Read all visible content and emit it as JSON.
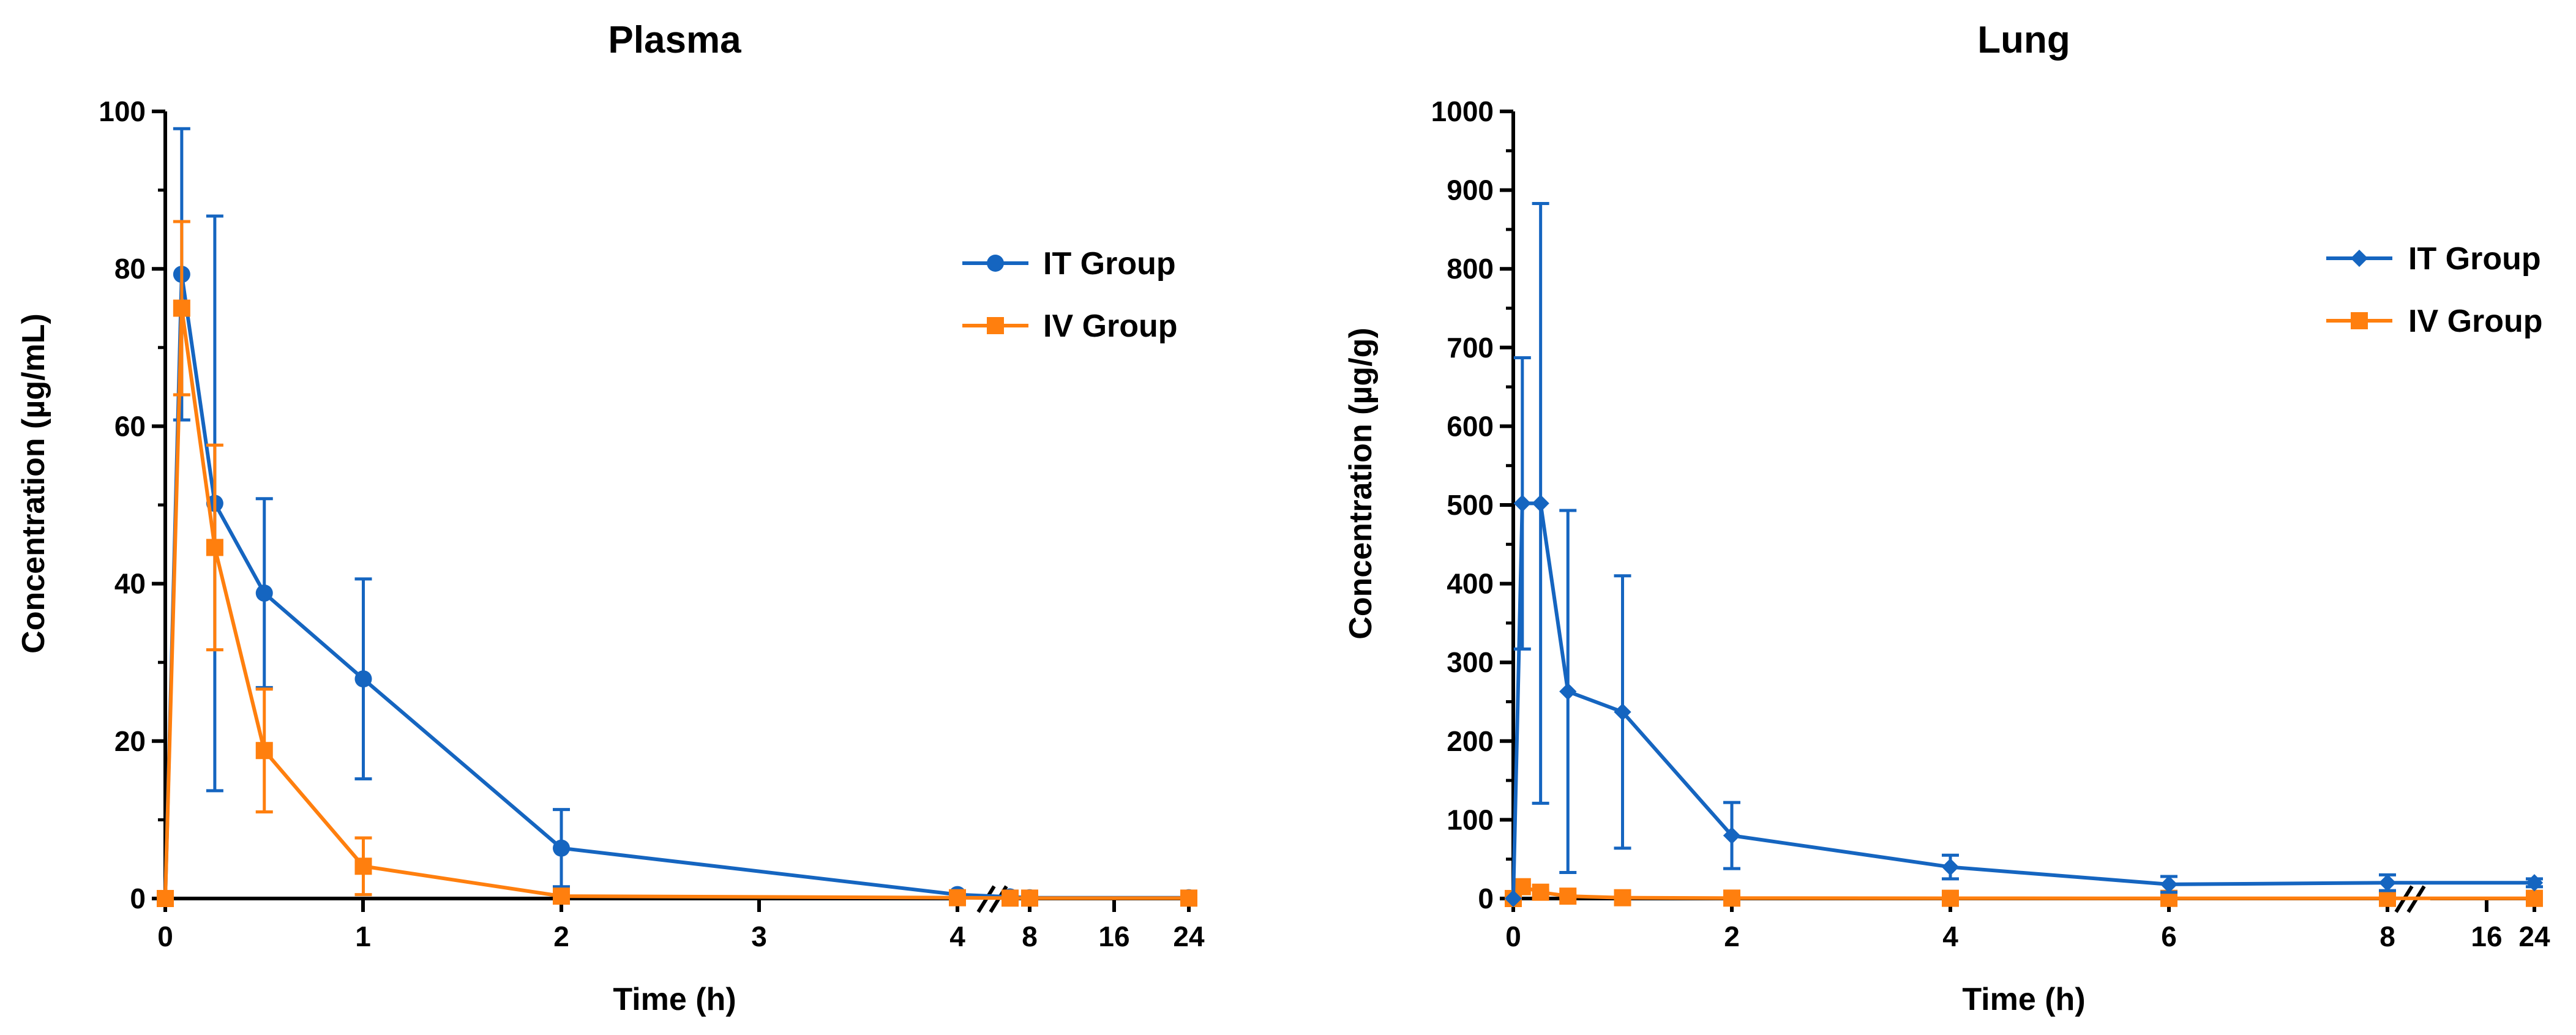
{
  "colors": {
    "it": "#1565C0",
    "iv": "#FF7F0E",
    "axis": "#000000"
  },
  "chart_data": [
    {
      "type": "line",
      "title": "Plasma",
      "xlabel": "Time (h)",
      "ylabel": "Concentration (µg/mL)",
      "ylim": [
        0,
        100
      ],
      "yticks": [
        0,
        20,
        40,
        60,
        80,
        100
      ],
      "xticks": [
        "0",
        "1",
        "2",
        "3",
        "4",
        "8",
        "16",
        "24"
      ],
      "x_axis": "broken: linear 0–4 h, then 8, 16, 24 h",
      "legend": "top-right",
      "series": [
        {
          "name": "IT Group",
          "marker": "circle",
          "x": [
            0,
            0.083,
            0.25,
            0.5,
            1,
            2,
            4,
            6,
            8,
            24
          ],
          "y": [
            0,
            79.3,
            50.2,
            38.8,
            27.9,
            6.4,
            0.5,
            0.2,
            0.1,
            0.1
          ],
          "err": [
            0,
            18.5,
            36.5,
            12.0,
            12.7,
            4.9,
            0.3,
            0.1,
            0.05,
            0.05
          ]
        },
        {
          "name": "IV Group",
          "marker": "square",
          "x": [
            0,
            0.083,
            0.25,
            0.5,
            1,
            2,
            4,
            6,
            8,
            24
          ],
          "y": [
            0,
            75.0,
            44.6,
            18.8,
            4.1,
            0.3,
            0.1,
            0.05,
            0.05,
            0.05
          ],
          "err": [
            0,
            11.0,
            13.0,
            7.8,
            3.6,
            0.3,
            0.05,
            0.02,
            0.02,
            0.02
          ]
        }
      ]
    },
    {
      "type": "line",
      "title": "Lung",
      "xlabel": "Time (h)",
      "ylabel": "Concentration (µg/g)",
      "ylim": [
        0,
        1000
      ],
      "yticks": [
        0,
        100,
        200,
        300,
        400,
        500,
        600,
        700,
        800,
        900,
        1000
      ],
      "xticks": [
        "0",
        "2",
        "4",
        "6",
        "8",
        "16",
        "24"
      ],
      "x_axis": "broken: linear 0–8 h, then 16, 24 h",
      "legend": "top-right",
      "series": [
        {
          "name": "IT Group",
          "marker": "diamond",
          "x": [
            0,
            0.083,
            0.25,
            0.5,
            1,
            2,
            4,
            6,
            8,
            24
          ],
          "y": [
            0,
            502,
            502,
            263,
            237,
            80,
            40,
            18,
            20,
            20
          ],
          "err": [
            0,
            185,
            381,
            230,
            173,
            42,
            15,
            10,
            10,
            5
          ]
        },
        {
          "name": "IV Group",
          "marker": "square",
          "x": [
            0,
            0.083,
            0.25,
            0.5,
            1,
            2,
            4,
            6,
            8,
            24
          ],
          "y": [
            0,
            15,
            8,
            3,
            1,
            0.5,
            0.3,
            0.2,
            0.2,
            0.2
          ],
          "err": [
            0,
            3,
            2,
            1,
            0.5,
            0.2,
            0.1,
            0.1,
            0.1,
            0.1
          ]
        }
      ]
    }
  ]
}
